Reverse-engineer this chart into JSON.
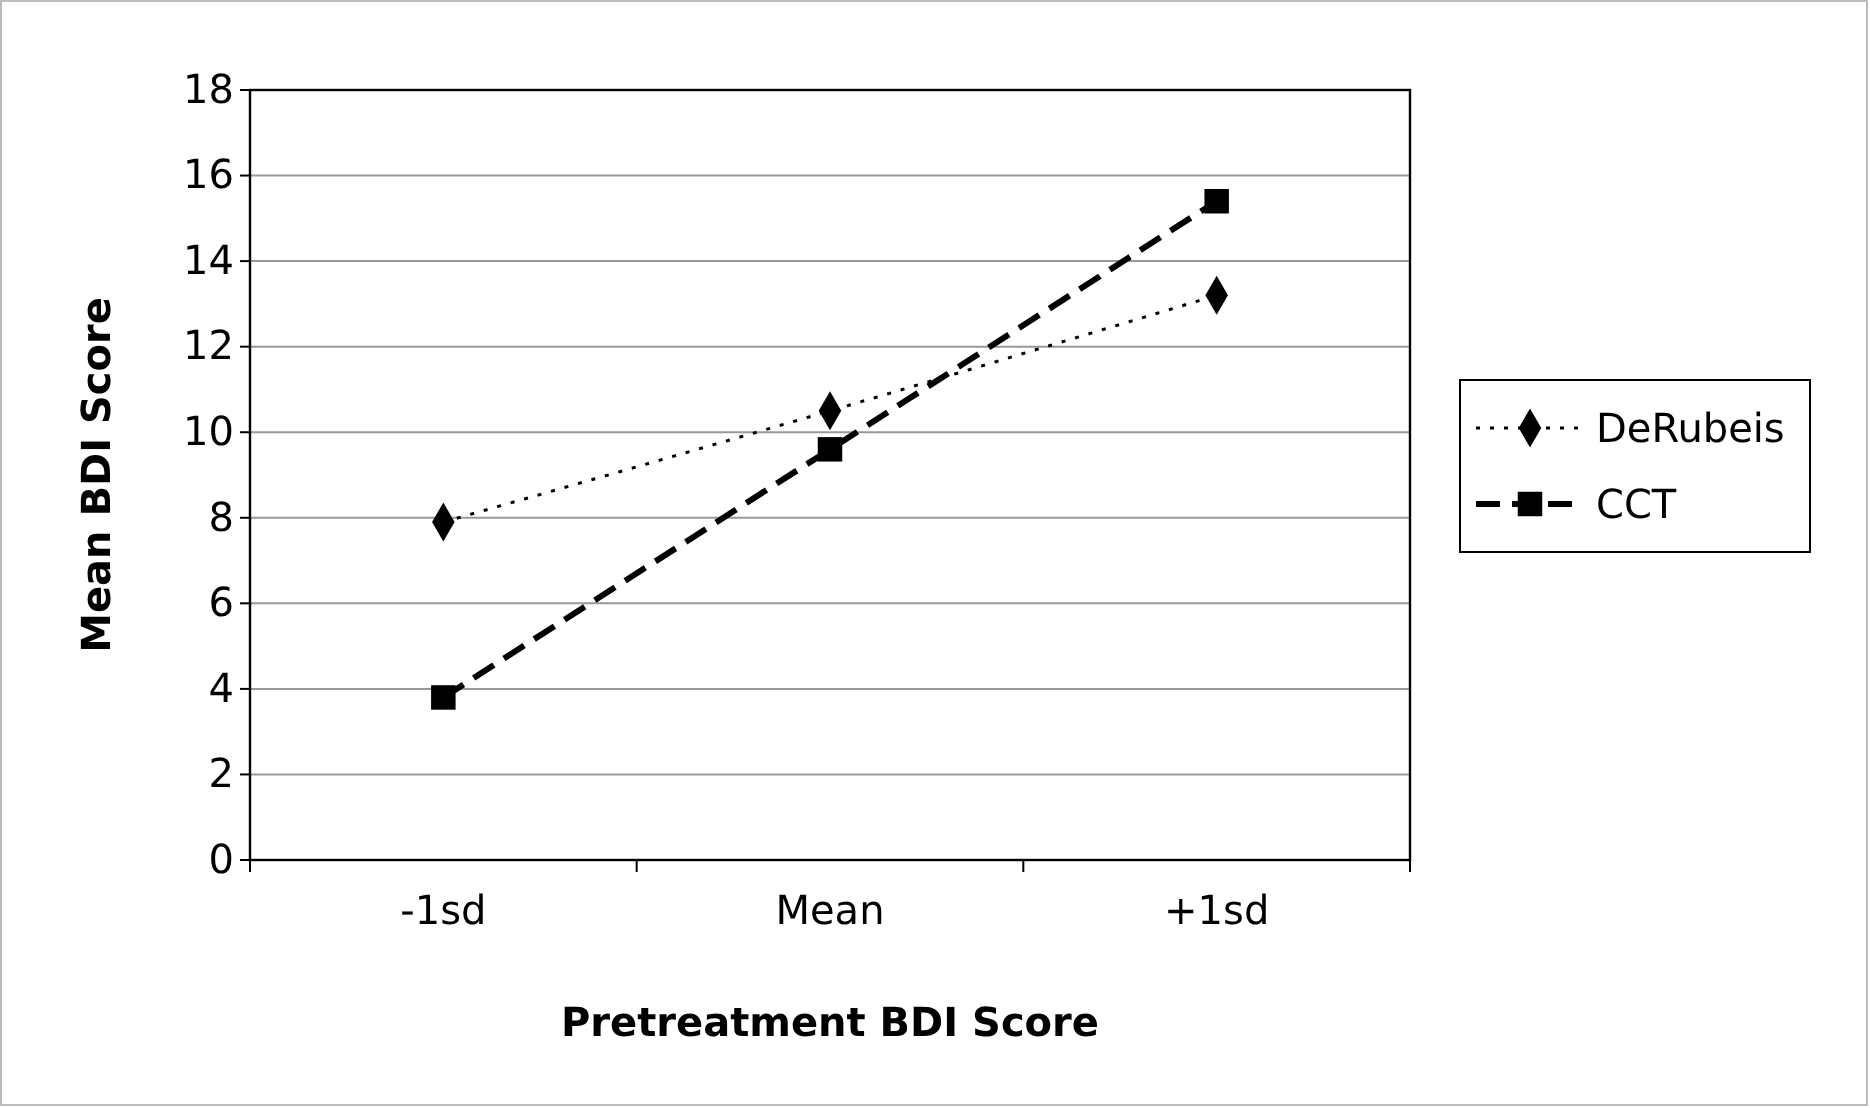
{
  "chart_data": {
    "type": "line",
    "xlabel": "Pretreatment BDI Score",
    "ylabel": "Mean BDI Score",
    "categories": [
      "-1sd",
      "Mean",
      "+1sd"
    ],
    "series": [
      {
        "name": "DeRubeis",
        "color": "#000000",
        "values": [
          7.9,
          10.5,
          13.2
        ],
        "marker": "diamond",
        "line_style": "dotted"
      },
      {
        "name": "CCT",
        "color": "#000000",
        "values": [
          3.8,
          9.6,
          15.4
        ],
        "marker": "square",
        "line_style": "dashed"
      }
    ],
    "ylim": [
      0,
      18
    ],
    "yticks": [
      0,
      2,
      4,
      6,
      8,
      10,
      12,
      14,
      16,
      18
    ],
    "grid": "y",
    "legend": "right"
  }
}
